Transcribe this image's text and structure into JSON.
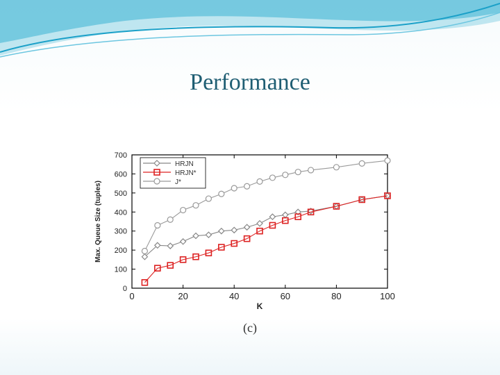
{
  "slide": {
    "title": "Performance",
    "caption": "(c)",
    "accent_color": "#1aa0c8"
  },
  "chart_data": {
    "type": "line",
    "title": "",
    "xlabel": "K",
    "ylabel": "Max. Queue Size (tuples)",
    "xlim": [
      0,
      100
    ],
    "ylim": [
      0,
      700
    ],
    "xticks": [
      0,
      20,
      40,
      60,
      80,
      100
    ],
    "yticks": [
      0,
      100,
      200,
      300,
      400,
      500,
      600,
      700
    ],
    "grid": false,
    "legend_position": "top-left",
    "series": [
      {
        "name": "HRJN",
        "color": "#888888",
        "marker": "diamond",
        "x": [
          5,
          10,
          15,
          20,
          25,
          30,
          35,
          40,
          45,
          50,
          55,
          60,
          65,
          70,
          80,
          90,
          100
        ],
        "y": [
          165,
          225,
          222,
          245,
          275,
          280,
          300,
          305,
          320,
          340,
          375,
          385,
          400,
          405,
          430,
          465,
          485
        ]
      },
      {
        "name": "HRJN*",
        "color": "#dd2222",
        "marker": "square",
        "x": [
          5,
          10,
          15,
          20,
          25,
          30,
          35,
          40,
          45,
          50,
          55,
          60,
          65,
          70,
          80,
          90,
          100
        ],
        "y": [
          30,
          105,
          120,
          150,
          165,
          185,
          215,
          235,
          260,
          300,
          330,
          355,
          375,
          400,
          430,
          465,
          485
        ]
      },
      {
        "name": "J*",
        "color": "#999999",
        "marker": "circle",
        "x": [
          5,
          10,
          15,
          20,
          25,
          30,
          35,
          40,
          45,
          50,
          55,
          60,
          65,
          70,
          80,
          90,
          100
        ],
        "y": [
          195,
          330,
          360,
          410,
          435,
          470,
          495,
          525,
          535,
          560,
          580,
          595,
          610,
          620,
          635,
          655,
          670
        ]
      }
    ]
  }
}
